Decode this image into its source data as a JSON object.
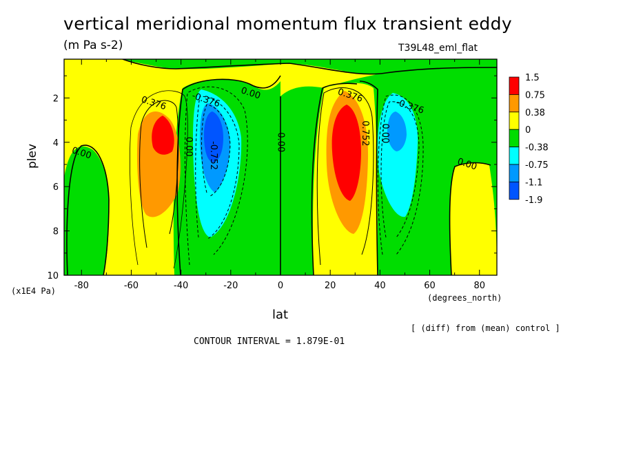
{
  "chart_data": {
    "type": "heatmap",
    "title": "vertical meridional momentum flux transient eddy",
    "units": "(m Pa s-2)",
    "run_label": "T39L48_eml_flat",
    "xlabel": "lat",
    "ylabel": "plev",
    "x_units": "(degrees_north)",
    "y_units": "(x1E4 Pa)",
    "xlim": [
      -87,
      87
    ],
    "ylim": [
      10,
      0.25
    ],
    "x_ticks": [
      -80,
      -60,
      -40,
      -20,
      0,
      20,
      40,
      60,
      80
    ],
    "y_ticks": [
      2,
      4,
      6,
      8,
      10
    ],
    "note": "[ (diff) from (mean) control ]",
    "contour_interval_text": "CONTOUR INTERVAL = 1.879E-01",
    "colorbar": {
      "labels": [
        "1.5",
        "0.75",
        "0.38",
        "0",
        "-0.38",
        "-0.75",
        "-1.1",
        "-1.9"
      ],
      "colors": [
        "#ff0000",
        "#ff9900",
        "#ffff00",
        "#00dd00",
        "#00ffff",
        "#0099ff",
        "#0055ff"
      ]
    },
    "contour_labels": [
      {
        "text": "0.376",
        "lat": -51,
        "p": 2.25
      },
      {
        "text": "-0.376",
        "lat": -30,
        "p": 2.1
      },
      {
        "text": "-0.752",
        "lat": -27,
        "p": 4.6
      },
      {
        "text": "0.00",
        "lat": -37,
        "p": 4.2
      },
      {
        "text": "0.00",
        "lat": -12,
        "p": 1.8
      },
      {
        "text": "0.00",
        "lat": 0,
        "p": 4.0
      },
      {
        "text": "0.376",
        "lat": 28,
        "p": 1.9
      },
      {
        "text": "0.752",
        "lat": 34,
        "p": 3.6
      },
      {
        "text": "0.00",
        "lat": 42,
        "p": 3.6
      },
      {
        "text": "-0.376",
        "lat": 52,
        "p": 2.4
      },
      {
        "text": "0.00",
        "lat": -80,
        "p": 4.5
      },
      {
        "text": "0.00",
        "lat": 75,
        "p": 5.0
      }
    ],
    "features": [
      {
        "sign": "positive",
        "lat": -47,
        "p": 3.5,
        "peak": 1.1
      },
      {
        "sign": "negative",
        "lat": -28,
        "p": 3.8,
        "peak": -1.3
      },
      {
        "sign": "positive",
        "lat": 28,
        "p": 3.8,
        "peak": 1.4
      },
      {
        "sign": "negative",
        "lat": 45,
        "p": 3.5,
        "peak": -0.9
      }
    ]
  }
}
